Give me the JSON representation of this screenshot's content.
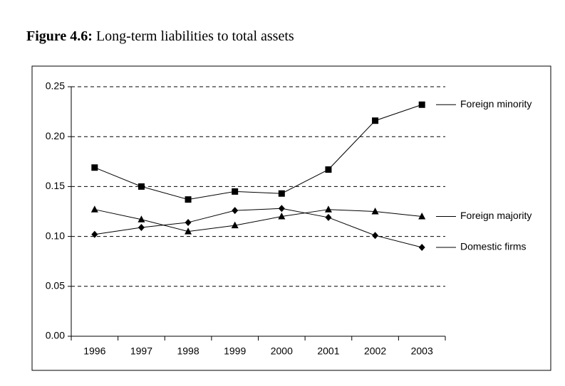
{
  "chart_data": {
    "type": "line",
    "figure_label": "Figure 4.6:",
    "title": "Long-term liabilities to total assets",
    "categories": [
      "1996",
      "1997",
      "1998",
      "1999",
      "2000",
      "2001",
      "2002",
      "2003"
    ],
    "series": [
      {
        "name": "Foreign minority",
        "color": "#000000",
        "marker": "square",
        "values": [
          0.169,
          0.15,
          0.137,
          0.145,
          0.143,
          0.167,
          0.216,
          0.232
        ]
      },
      {
        "name": "Foreign majority",
        "color": "#000000",
        "marker": "triangle",
        "values": [
          0.127,
          0.117,
          0.105,
          0.111,
          0.12,
          0.127,
          0.125,
          0.12
        ]
      },
      {
        "name": "Domestic firms",
        "color": "#000000",
        "marker": "diamond",
        "values": [
          0.102,
          0.109,
          0.114,
          0.126,
          0.128,
          0.119,
          0.101,
          0.089
        ]
      }
    ],
    "ylim": [
      0,
      0.25
    ],
    "yticks": [
      {
        "value": 0,
        "label": "0.00"
      },
      {
        "value": 0.05,
        "label": "0.05"
      },
      {
        "value": 0.1,
        "label": "0.10"
      },
      {
        "value": 0.15,
        "label": "0.15"
      },
      {
        "value": 0.2,
        "label": "0.20"
      },
      {
        "value": 0.25,
        "label": "0.25"
      }
    ],
    "grid": true,
    "legend": "right"
  }
}
